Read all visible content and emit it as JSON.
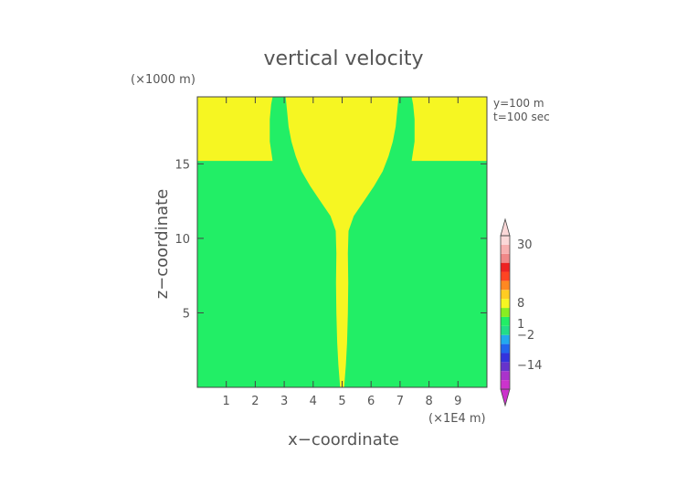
{
  "chart_data": {
    "type": "heatmap",
    "title": "vertical velocity",
    "xlabel": "x−coordinate",
    "ylabel": "z−coordinate",
    "x_unit": "(×1E4 m)",
    "y_unit": "(×1000 m)",
    "annotations": [
      "y=100 m",
      "t=100 sec"
    ],
    "xlim": [
      0,
      10
    ],
    "ylim": [
      0,
      19.5
    ],
    "x_ticks": [
      1,
      2,
      3,
      4,
      5,
      6,
      7,
      8,
      9
    ],
    "y_ticks": [
      5,
      10,
      15
    ],
    "grid": false,
    "background_fill": "#22ee66",
    "region_fill": "#f6f622",
    "regions": [
      {
        "x_left": [
          4.93,
          4.87,
          4.83,
          4.8,
          4.79,
          4.8,
          4.78,
          4.6,
          4.25,
          3.9,
          3.6,
          3.4,
          3.25,
          3.15,
          3.1,
          3.05
        ],
        "x_right": [
          5.07,
          5.13,
          5.17,
          5.2,
          5.21,
          5.2,
          5.22,
          5.4,
          5.75,
          6.1,
          6.4,
          6.6,
          6.75,
          6.85,
          6.9,
          6.95
        ],
        "z": [
          0.0,
          1.5,
          3.0,
          5.0,
          7.0,
          9.0,
          10.5,
          11.5,
          12.5,
          13.5,
          14.5,
          15.5,
          16.5,
          17.5,
          18.5,
          19.5
        ]
      },
      {
        "x_right": [
          2.6,
          2.5,
          2.5,
          2.55,
          2.6
        ],
        "z": [
          15.2,
          16.5,
          18.0,
          19.0,
          19.5
        ],
        "anchor": "left-top"
      },
      {
        "x_left": [
          7.4,
          7.5,
          7.5,
          7.45,
          7.4
        ],
        "z": [
          15.2,
          16.5,
          18.0,
          19.0,
          19.5
        ],
        "anchor": "right-top"
      }
    ],
    "colorbar": {
      "ticks": [
        30,
        8,
        1,
        -2,
        -14
      ],
      "colors": [
        "#cc33cc",
        "#aa33cc",
        "#6633cc",
        "#3333dd",
        "#2266ee",
        "#22aaee",
        "#22dd88",
        "#22ee66",
        "#88ee22",
        "#f6f622",
        "#ffcc22",
        "#ff8822",
        "#ff4422",
        "#ee2222",
        "#f08888",
        "#f7b0b0",
        "#fbd8d8"
      ]
    }
  }
}
